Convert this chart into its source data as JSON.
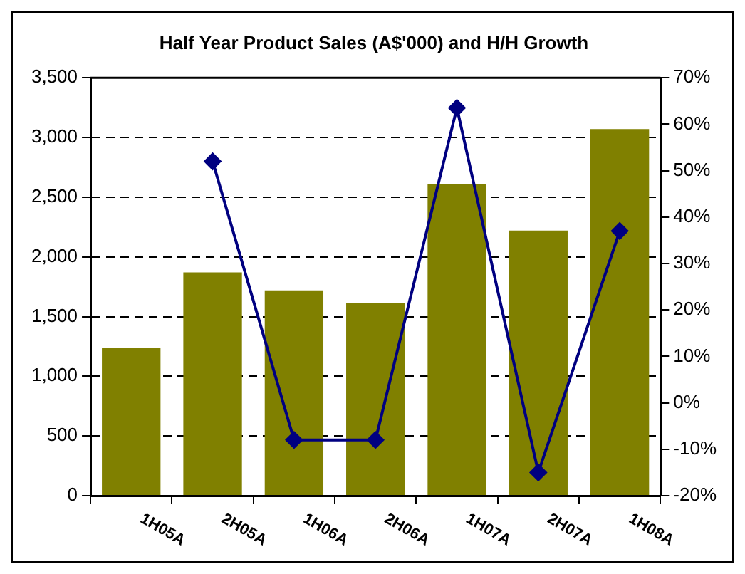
{
  "chart_data": {
    "type": "bar",
    "title": "Half Year Product Sales (A$'000) and H/H Growth",
    "categories": [
      "1H05A",
      "2H05A",
      "1H06A",
      "2H06A",
      "1H07A",
      "2H07A",
      "1H08A"
    ],
    "series": [
      {
        "color": "#808000",
        "values": [
          1240,
          1870,
          1720,
          1610,
          2610,
          2220,
          3070
        ]
      },
      {
        "type": "line",
        "axis": "y2",
        "color": "#000080",
        "marker": "diamond",
        "values": [
          null,
          52,
          -8,
          -8,
          63.5,
          -15,
          37
        ]
      }
    ],
    "ylim": [
      0,
      3500
    ],
    "yticks": [
      0,
      500,
      {
        "value": 1000,
        "label": "1,000"
      },
      {
        "value": 1500,
        "label": "1,500"
      },
      {
        "value": 2000,
        "label": "2,000"
      },
      {
        "value": 2500,
        "label": "2,500"
      },
      {
        "value": 3000,
        "label": "3,000"
      },
      {
        "value": 3500,
        "label": "3,500"
      }
    ],
    "y2lim": [
      -20,
      70
    ],
    "y2ticks": [
      {
        "value": -20,
        "label": "-20%"
      },
      {
        "value": -10,
        "label": "-10%"
      },
      {
        "value": 0,
        "label": "0%"
      },
      {
        "value": 10,
        "label": "10%"
      },
      {
        "value": 20,
        "label": "20%"
      },
      {
        "value": 30,
        "label": "30%"
      },
      {
        "value": 40,
        "label": "40%"
      },
      {
        "value": 50,
        "label": "50%"
      },
      {
        "value": 60,
        "label": "60%"
      },
      {
        "value": 70,
        "label": "70%"
      }
    ],
    "grid": "y",
    "legend": false
  }
}
